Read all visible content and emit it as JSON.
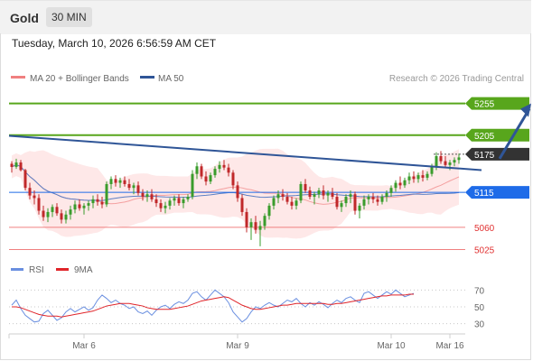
{
  "header": {
    "title": "Gold",
    "timeframe": "30 MIN"
  },
  "datetime": "Tuesday, March 10, 2026 6:56:59 AM CET",
  "legend": {
    "bollinger": "MA 20 + Bollinger Bands",
    "ma50": "MA 50"
  },
  "credit": "Research © 2026 Trading Central",
  "colors": {
    "resistance": "#58a61c",
    "support": "#f08080",
    "pivot": "#1e6be8",
    "price_tag": "#333333",
    "trendline": "#2f5597",
    "band_fill": "#fde0e0",
    "ma20": "#f4a0a0",
    "ma50": "#5b7fc4",
    "candle_up": "#3a9c2c",
    "candle_down": "#c0282a",
    "rsi": "#6a8fe0",
    "rsi_ma": "#e0252a"
  },
  "chart_data": [
    {
      "type": "candlestick",
      "title": "",
      "x_ticks": [
        "Mar 6",
        "Mar 9",
        "Mar 10",
        "Mar 16"
      ],
      "y_range": [
        5010,
        5280
      ],
      "levels": [
        {
          "value": 5255,
          "label": "5255",
          "kind": "resistance"
        },
        {
          "value": 5205,
          "label": "5205",
          "kind": "resistance"
        },
        {
          "value": 5175,
          "label": "5175",
          "kind": "last_price"
        },
        {
          "value": 5115,
          "label": "5115",
          "kind": "pivot"
        },
        {
          "value": 5060,
          "label": "5060",
          "kind": "support"
        },
        {
          "value": 5025,
          "label": "5025",
          "kind": "support"
        }
      ],
      "trendline": [
        [
          0,
          5204
        ],
        [
          104,
          5150
        ]
      ],
      "target_arrow": [
        [
          108,
          5168
        ],
        [
          115,
          5255
        ]
      ],
      "candles": [
        [
          5160,
          5164,
          5146,
          5155
        ],
        [
          5155,
          5168,
          5152,
          5162
        ],
        [
          5162,
          5166,
          5148,
          5150
        ],
        [
          5150,
          5152,
          5118,
          5122
        ],
        [
          5122,
          5130,
          5104,
          5110
        ],
        [
          5110,
          5118,
          5096,
          5106
        ],
        [
          5106,
          5112,
          5080,
          5086
        ],
        [
          5086,
          5094,
          5070,
          5076
        ],
        [
          5076,
          5090,
          5068,
          5084
        ],
        [
          5084,
          5096,
          5076,
          5092
        ],
        [
          5092,
          5098,
          5078,
          5082
        ],
        [
          5082,
          5088,
          5066,
          5072
        ],
        [
          5072,
          5086,
          5066,
          5080
        ],
        [
          5080,
          5094,
          5072,
          5088
        ],
        [
          5088,
          5102,
          5082,
          5096
        ],
        [
          5096,
          5104,
          5086,
          5090
        ],
        [
          5090,
          5098,
          5080,
          5094
        ],
        [
          5094,
          5102,
          5086,
          5098
        ],
        [
          5098,
          5110,
          5090,
          5104
        ],
        [
          5104,
          5112,
          5094,
          5100
        ],
        [
          5100,
          5108,
          5090,
          5096
        ],
        [
          5096,
          5132,
          5092,
          5128
        ],
        [
          5128,
          5140,
          5120,
          5136
        ],
        [
          5136,
          5142,
          5124,
          5130
        ],
        [
          5130,
          5138,
          5122,
          5134
        ],
        [
          5134,
          5140,
          5124,
          5128
        ],
        [
          5128,
          5136,
          5118,
          5122
        ],
        [
          5122,
          5130,
          5112,
          5126
        ],
        [
          5126,
          5132,
          5110,
          5114
        ],
        [
          5114,
          5120,
          5102,
          5108
        ],
        [
          5108,
          5118,
          5100,
          5112
        ],
        [
          5112,
          5120,
          5100,
          5104
        ],
        [
          5104,
          5112,
          5092,
          5098
        ],
        [
          5098,
          5104,
          5084,
          5090
        ],
        [
          5090,
          5100,
          5082,
          5094
        ],
        [
          5094,
          5106,
          5088,
          5102
        ],
        [
          5102,
          5110,
          5094,
          5106
        ],
        [
          5106,
          5112,
          5094,
          5098
        ],
        [
          5098,
          5108,
          5090,
          5104
        ],
        [
          5104,
          5112,
          5100,
          5108
        ],
        [
          5108,
          5150,
          5104,
          5144
        ],
        [
          5144,
          5162,
          5136,
          5156
        ],
        [
          5156,
          5160,
          5136,
          5140
        ],
        [
          5140,
          5148,
          5126,
          5132
        ],
        [
          5132,
          5146,
          5128,
          5142
        ],
        [
          5142,
          5156,
          5138,
          5152
        ],
        [
          5152,
          5164,
          5146,
          5158
        ],
        [
          5158,
          5166,
          5150,
          5154
        ],
        [
          5154,
          5160,
          5140,
          5146
        ],
        [
          5146,
          5150,
          5120,
          5126
        ],
        [
          5126,
          5132,
          5100,
          5106
        ],
        [
          5106,
          5112,
          5078,
          5084
        ],
        [
          5084,
          5090,
          5052,
          5060
        ],
        [
          5060,
          5074,
          5040,
          5068
        ],
        [
          5068,
          5078,
          5050,
          5056
        ],
        [
          5056,
          5070,
          5030,
          5062
        ],
        [
          5062,
          5082,
          5056,
          5078
        ],
        [
          5078,
          5098,
          5072,
          5094
        ],
        [
          5094,
          5110,
          5088,
          5106
        ],
        [
          5106,
          5118,
          5098,
          5112
        ],
        [
          5112,
          5120,
          5102,
          5108
        ],
        [
          5108,
          5114,
          5096,
          5100
        ],
        [
          5100,
          5108,
          5088,
          5094
        ],
        [
          5094,
          5106,
          5088,
          5102
        ],
        [
          5102,
          5132,
          5098,
          5128
        ],
        [
          5128,
          5136,
          5114,
          5118
        ],
        [
          5118,
          5124,
          5104,
          5108
        ],
        [
          5108,
          5116,
          5096,
          5112
        ],
        [
          5112,
          5122,
          5106,
          5118
        ],
        [
          5118,
          5126,
          5104,
          5110
        ],
        [
          5110,
          5118,
          5100,
          5114
        ],
        [
          5114,
          5122,
          5104,
          5108
        ],
        [
          5108,
          5114,
          5088,
          5092
        ],
        [
          5092,
          5102,
          5084,
          5098
        ],
        [
          5098,
          5112,
          5092,
          5108
        ],
        [
          5108,
          5118,
          5098,
          5112
        ],
        [
          5112,
          5116,
          5080,
          5086
        ],
        [
          5086,
          5098,
          5074,
          5094
        ],
        [
          5094,
          5110,
          5088,
          5104
        ],
        [
          5104,
          5112,
          5096,
          5108
        ],
        [
          5108,
          5114,
          5098,
          5104
        ],
        [
          5104,
          5110,
          5094,
          5100
        ],
        [
          5100,
          5112,
          5096,
          5108
        ],
        [
          5108,
          5118,
          5100,
          5114
        ],
        [
          5114,
          5126,
          5108,
          5122
        ],
        [
          5122,
          5134,
          5116,
          5130
        ],
        [
          5130,
          5140,
          5120,
          5126
        ],
        [
          5126,
          5138,
          5122,
          5134
        ],
        [
          5134,
          5146,
          5128,
          5140
        ],
        [
          5140,
          5148,
          5130,
          5136
        ],
        [
          5136,
          5146,
          5130,
          5142
        ],
        [
          5142,
          5150,
          5132,
          5138
        ],
        [
          5138,
          5148,
          5134,
          5144
        ],
        [
          5144,
          5160,
          5140,
          5156
        ],
        [
          5156,
          5178,
          5150,
          5172
        ],
        [
          5172,
          5180,
          5160,
          5164
        ],
        [
          5164,
          5172,
          5154,
          5158
        ],
        [
          5158,
          5166,
          5150,
          5162
        ],
        [
          5162,
          5170,
          5156,
          5166
        ],
        [
          5166,
          5176,
          5160,
          5170
        ]
      ]
    },
    {
      "type": "line",
      "title": "",
      "legend": {
        "rsi": "RSI",
        "ma": "9MA"
      },
      "y_range": [
        20,
        80
      ],
      "y_ticks": [
        70,
        50,
        30
      ],
      "series": [
        {
          "name": "RSI",
          "values": [
            52,
            58,
            48,
            40,
            36,
            32,
            33,
            42,
            46,
            40,
            34,
            37,
            44,
            48,
            44,
            47,
            50,
            46,
            49,
            58,
            64,
            60,
            55,
            58,
            54,
            52,
            48,
            50,
            44,
            42,
            45,
            40,
            46,
            50,
            52,
            48,
            53,
            56,
            54,
            58,
            66,
            68,
            62,
            58,
            64,
            70,
            66,
            62,
            55,
            44,
            38,
            32,
            36,
            44,
            50,
            48,
            52,
            55,
            52,
            50,
            54,
            58,
            56,
            60,
            54,
            50,
            55,
            52,
            56,
            53,
            49,
            54,
            58,
            55,
            60,
            62,
            58,
            55,
            66,
            68,
            64,
            60,
            64,
            68,
            65,
            70,
            66,
            62,
            64,
            66
          ]
        },
        {
          "name": "9MA",
          "values": [
            50,
            50,
            49,
            47,
            45,
            43,
            41,
            40,
            39,
            39,
            39,
            38,
            39,
            40,
            41,
            42,
            43,
            44,
            45,
            47,
            49,
            51,
            52,
            53,
            54,
            54,
            54,
            53,
            52,
            51,
            49,
            48,
            47,
            47,
            47,
            47,
            48,
            49,
            50,
            51,
            53,
            55,
            57,
            58,
            59,
            60,
            61,
            62,
            61,
            58,
            55,
            52,
            50,
            48,
            47,
            47,
            48,
            49,
            50,
            51,
            52,
            52,
            53,
            54,
            54,
            54,
            54,
            54,
            54,
            54,
            53,
            53,
            54,
            54,
            55,
            56,
            57,
            58,
            59,
            60,
            61,
            62,
            63,
            63,
            64,
            64,
            64,
            64,
            65,
            65
          ]
        }
      ]
    }
  ]
}
